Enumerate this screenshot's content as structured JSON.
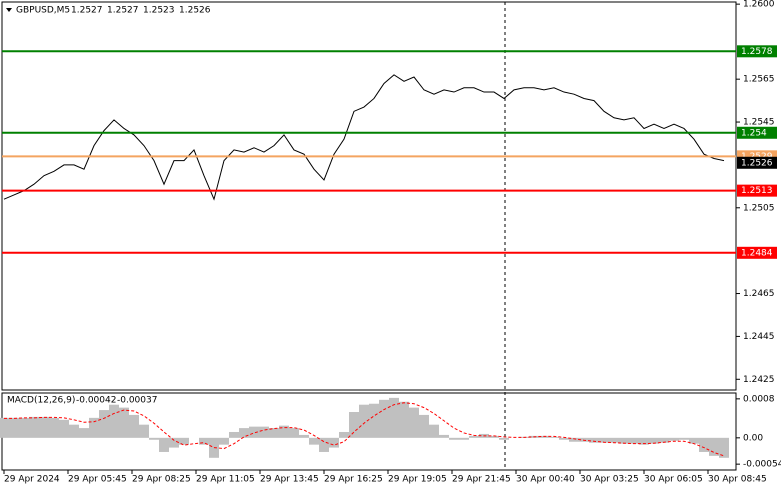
{
  "chart_data": [
    {
      "type": "line",
      "title": "GBPUSD,M5",
      "ohlc": [
        1.2527,
        1.2527,
        1.2523,
        1.2526
      ],
      "color": "#000000",
      "values": [
        1.2509,
        1.2511,
        1.2513,
        1.2516,
        1.252,
        1.2522,
        1.2525,
        1.2525,
        1.2523,
        1.2534,
        1.2541,
        1.2546,
        1.2542,
        1.2539,
        1.2534,
        1.2527,
        1.2516,
        1.2527,
        1.2527,
        1.2532,
        1.252,
        1.2509,
        1.2527,
        1.2532,
        1.2531,
        1.2533,
        1.2531,
        1.2534,
        1.2539,
        1.2532,
        1.253,
        1.2523,
        1.2518,
        1.253,
        1.2537,
        1.255,
        1.2552,
        1.2556,
        1.2563,
        1.2567,
        1.2564,
        1.2566,
        1.256,
        1.2558,
        1.256,
        1.2559,
        1.2561,
        1.2561,
        1.2559,
        1.2559,
        1.2556,
        1.256,
        1.2561,
        1.2561,
        1.256,
        1.2561,
        1.2559,
        1.2558,
        1.2556,
        1.2555,
        1.255,
        1.2547,
        1.2546,
        1.2547,
        1.2542,
        1.2544,
        1.2542,
        1.2544,
        1.2542,
        1.2537,
        1.253,
        1.2528,
        1.2527
      ],
      "ylim": [
        1.242,
        1.2601
      ],
      "yticks": [
        {
          "value": 1.26,
          "label": "1.2600"
        },
        1.2565,
        1.2545,
        1.2505,
        1.2465,
        1.2445,
        1.2425
      ],
      "levels": [
        {
          "value": 1.2578,
          "color": "#008000"
        },
        {
          "value": 1.254,
          "color": "#008000"
        },
        {
          "value": 1.2529,
          "color": "#f4a460"
        },
        {
          "value": 1.2513,
          "color": "#ff0000"
        },
        {
          "value": 1.2484,
          "color": "#ff0000"
        }
      ],
      "current_price": 1.2526,
      "x_labels": [
        "29 Apr 2024",
        "29 Apr 05:45",
        "29 Apr 08:25",
        "29 Apr 11:05",
        "29 Apr 13:45",
        "29 Apr 16:25",
        "29 Apr 19:05",
        "29 Apr 21:45",
        "30 Apr 00:40",
        "30 Apr 03:25",
        "30 Apr 06:05",
        "30 Apr 08:45"
      ]
    },
    {
      "type": "bar",
      "title": "MACD(12,26,9)",
      "readings": [
        -0.00042,
        -0.00037
      ],
      "ylim": [
        -0.00066,
        0.00092
      ],
      "yticks": [
        0.0008,
        {
          "value": 0,
          "label": "0.00"
        },
        -0.00054
      ],
      "series": [
        {
          "type": "bar",
          "color": "#c0c0c0",
          "values": [
            0.00041,
            0.00041,
            0.00041,
            0.00043,
            0.00043,
            0.00041,
            0.00037,
            0.00027,
            0.0002,
            0.00041,
            0.00057,
            0.00068,
            0.00062,
            0.00047,
            0.00027,
            -4e-05,
            -0.00029,
            -0.0002,
            -0.00014,
            0,
            -0.00014,
            -0.00041,
            -0.00014,
            0.00012,
            0.0002,
            0.00023,
            0.00023,
            0.0002,
            0.00025,
            0.0002,
            6e-05,
            -0.00014,
            -0.00029,
            -0.0002,
            0.00012,
            0.00053,
            0.00068,
            0.0007,
            0.00078,
            0.00082,
            0.00074,
            0.00062,
            0.00047,
            0.00027,
            6e-05,
            -4e-05,
            -4e-05,
            4e-05,
            8e-05,
            4e-05,
            -4e-05,
            0,
            2e-05,
            4e-05,
            4e-05,
            2e-05,
            -4e-05,
            -8e-05,
            -8e-05,
            -0.0001,
            -0.0001,
            -0.0001,
            -0.00012,
            -0.00012,
            -0.00014,
            -0.00012,
            -0.0001,
            -6e-05,
            -4e-05,
            -0.00012,
            -0.00029,
            -0.00037,
            -0.00041
          ]
        },
        {
          "type": "line",
          "color": "#ff0000",
          "values": [
            0.0004,
            0.0004,
            0.00041,
            0.00041,
            0.00042,
            0.00042,
            0.00041,
            0.00037,
            0.00032,
            0.00033,
            0.0004,
            0.0005,
            0.00057,
            0.00055,
            0.00045,
            0.0003,
            0.00012,
            -5e-05,
            -0.00015,
            -0.00012,
            -0.0001,
            -0.0002,
            -0.00022,
            -0.00012,
            2e-05,
            0.0001,
            0.00016,
            0.00019,
            0.00021,
            0.00021,
            0.00016,
            5e-05,
            -8e-05,
            -0.00015,
            -8e-05,
            0.00012,
            0.0003,
            0.00045,
            0.00058,
            0.00068,
            0.00072,
            0.0007,
            0.00062,
            0.0005,
            0.00035,
            0.0002,
            0.0001,
            5e-05,
            4e-05,
            4e-05,
            2e-05,
            1e-05,
            1e-05,
            2e-05,
            3e-05,
            3e-05,
            1e-05,
            -2e-05,
            -5e-05,
            -7e-05,
            -9e-05,
            -0.0001,
            -0.00011,
            -0.00012,
            -0.00012,
            -0.00011,
            -9e-05,
            -7e-05,
            -7e-05,
            -0.00012,
            -0.0002,
            -0.0003,
            -0.00037
          ]
        }
      ]
    }
  ]
}
